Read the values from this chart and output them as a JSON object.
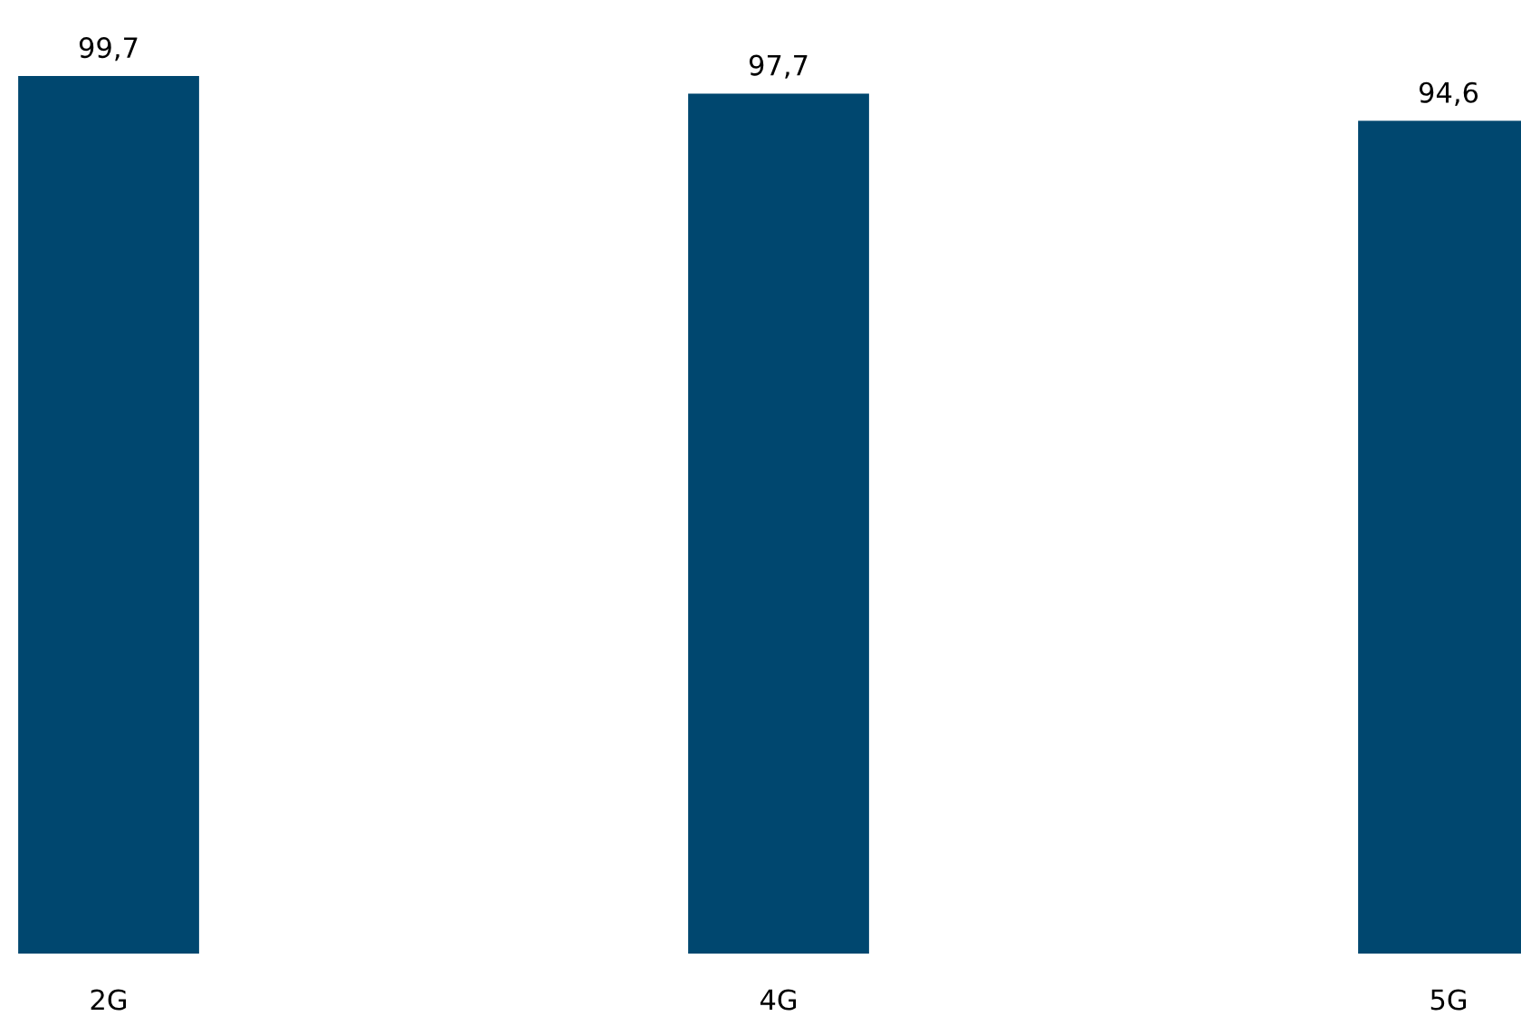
{
  "chart_data": {
    "type": "bar",
    "categories": [
      "2G",
      "4G",
      "5G"
    ],
    "values": [
      99.7,
      97.7,
      94.6
    ],
    "value_labels": [
      "99,7",
      "97,7",
      "94,6"
    ],
    "color": "#00476f",
    "grid": false,
    "legend": false
  }
}
